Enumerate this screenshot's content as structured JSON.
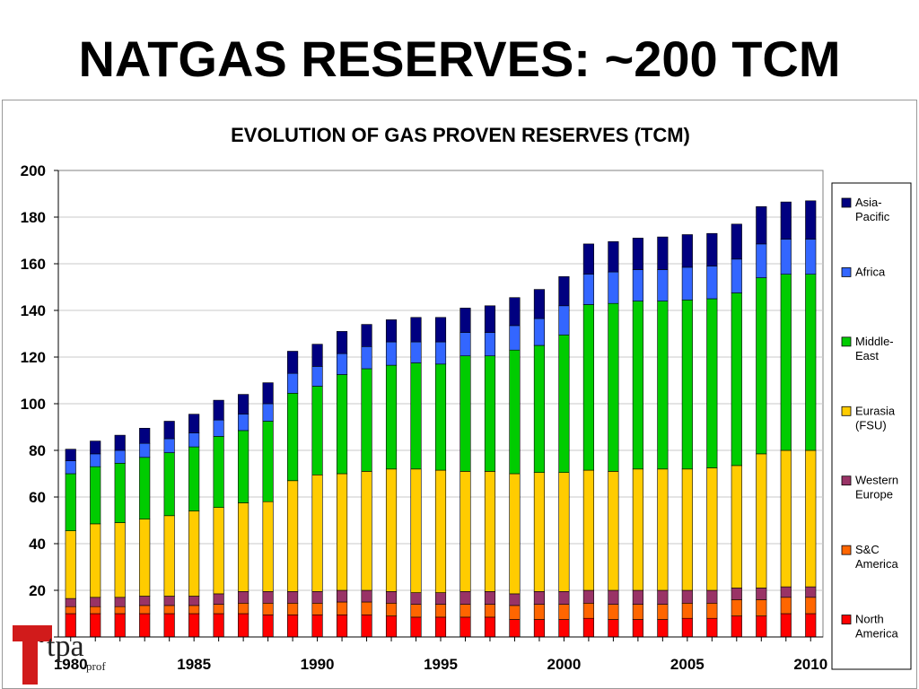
{
  "slide": {
    "title": "NATGAS RESERVES: ~200 TCM"
  },
  "logo": {
    "text": "tpa",
    "subtext": "prof"
  },
  "chart_data": {
    "type": "bar",
    "stacked": true,
    "title": "EVOLUTION OF GAS PROVEN RESERVES (TCM)",
    "xlabel": "",
    "ylabel": "",
    "ylim": [
      0,
      200
    ],
    "yticks": [
      0,
      20,
      40,
      60,
      80,
      100,
      120,
      140,
      160,
      180,
      200
    ],
    "grid": true,
    "legend_position": "right",
    "categories": [
      1980,
      1981,
      1982,
      1983,
      1984,
      1985,
      1986,
      1987,
      1988,
      1989,
      1990,
      1991,
      1992,
      1993,
      1994,
      1995,
      1996,
      1997,
      1998,
      1999,
      2000,
      2001,
      2002,
      2003,
      2004,
      2005,
      2006,
      2007,
      2008,
      2009,
      2010
    ],
    "xtick_labels": [
      "1980",
      "1985",
      "1990",
      "1995",
      "2000",
      "2005",
      "2010"
    ],
    "series": [
      {
        "name": "North America",
        "color": "#ff0000",
        "values": [
          10,
          10,
          10,
          10,
          10,
          10,
          10,
          10,
          9.5,
          9.5,
          9.5,
          9.5,
          9.5,
          9,
          8.5,
          8.5,
          8.5,
          8.5,
          7.5,
          7.5,
          7.5,
          8,
          7.5,
          7.5,
          7.5,
          8,
          8,
          9,
          9,
          10,
          10
        ]
      },
      {
        "name": "S&C America",
        "color": "#ff6600",
        "values": [
          3,
          3,
          3,
          3.5,
          3.5,
          3.5,
          4,
          4.5,
          5,
          5,
          5,
          5.5,
          5.5,
          5.5,
          5.5,
          5.5,
          5.5,
          5.5,
          6,
          6.5,
          6.5,
          6.5,
          6.5,
          6.5,
          6.5,
          6.5,
          6.5,
          7,
          7,
          7,
          7
        ]
      },
      {
        "name": "Western Europe",
        "color": "#993366",
        "values": [
          3.5,
          4,
          4,
          4,
          4,
          4,
          4.5,
          5,
          5,
          5,
          5,
          5,
          5,
          5,
          5,
          5,
          5.5,
          5.5,
          5,
          5.5,
          5.5,
          5.5,
          6,
          6,
          6,
          5.5,
          5.5,
          5,
          5,
          4.5,
          4.5
        ]
      },
      {
        "name": "Eurasia (FSU)",
        "color": "#ffcc00",
        "values": [
          29,
          31.5,
          32,
          33,
          34.5,
          36.5,
          37,
          38,
          38.5,
          47.5,
          50,
          50,
          51,
          52.5,
          53,
          52.5,
          51.5,
          51.5,
          51.5,
          51,
          51,
          51.5,
          51,
          52,
          52,
          52,
          52.5,
          52.5,
          57.5,
          58.5,
          58.5
        ]
      },
      {
        "name": "Middle-East",
        "color": "#00cc00",
        "values": [
          24.5,
          24.5,
          25.5,
          26.5,
          27,
          27.5,
          30.5,
          31,
          34.5,
          37.5,
          38,
          42.5,
          44,
          44.5,
          45.5,
          45.5,
          49.5,
          49.5,
          53,
          54.5,
          59,
          71,
          72,
          72,
          72,
          72.5,
          72.5,
          74,
          75.5,
          75.5,
          75.5
        ]
      },
      {
        "name": "Africa",
        "color": "#3366ff",
        "values": [
          5.5,
          5.5,
          5.5,
          6,
          6,
          6,
          7,
          7,
          7.5,
          8.5,
          8.5,
          9,
          9.5,
          10,
          9,
          9.5,
          10,
          10,
          10.5,
          11.5,
          12.5,
          13,
          13.5,
          13.5,
          13.5,
          14,
          14,
          14.5,
          14.5,
          15,
          15
        ]
      },
      {
        "name": "Asia-Pacific",
        "color": "#000080",
        "values": [
          5,
          5.5,
          6.5,
          6.5,
          7.5,
          8,
          8.5,
          8.5,
          9,
          9.5,
          9.5,
          9.5,
          9.5,
          9.5,
          10.5,
          10.5,
          10.5,
          11.5,
          12,
          12.5,
          12.5,
          13,
          13,
          13.5,
          14,
          14,
          14,
          15,
          16,
          16,
          16.5
        ]
      }
    ]
  }
}
